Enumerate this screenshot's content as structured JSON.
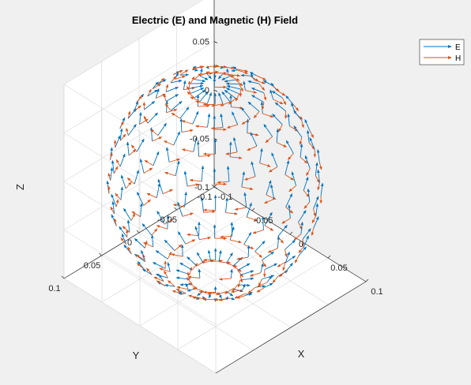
{
  "chart_data": {
    "type": "quiver3",
    "title": "Electric (E) and Magnetic (H) Field",
    "xlabel": "X",
    "ylabel": "Y",
    "zlabel": "Z",
    "xlim": [
      -0.1,
      0.1
    ],
    "ylim": [
      -0.1,
      0.1
    ],
    "zlim": [
      -0.1,
      0.1
    ],
    "xticks": [
      "-0.1",
      "-0.05",
      "0",
      "0.05",
      "0.1"
    ],
    "yticks": [
      "-0.1",
      "-0.05",
      "0",
      "0.05",
      "0.1"
    ],
    "zticks": [
      "-0.1",
      "-0.05",
      "0",
      "0.05",
      "0.1"
    ],
    "grid": true,
    "sphere_radius": 0.1,
    "legend_position": "top-right",
    "series": [
      {
        "name": "E",
        "color": "#0072BD",
        "direction": "tangential-vertical"
      },
      {
        "name": "H",
        "color": "#D95319",
        "direction": "tangential-horizontal"
      }
    ]
  }
}
